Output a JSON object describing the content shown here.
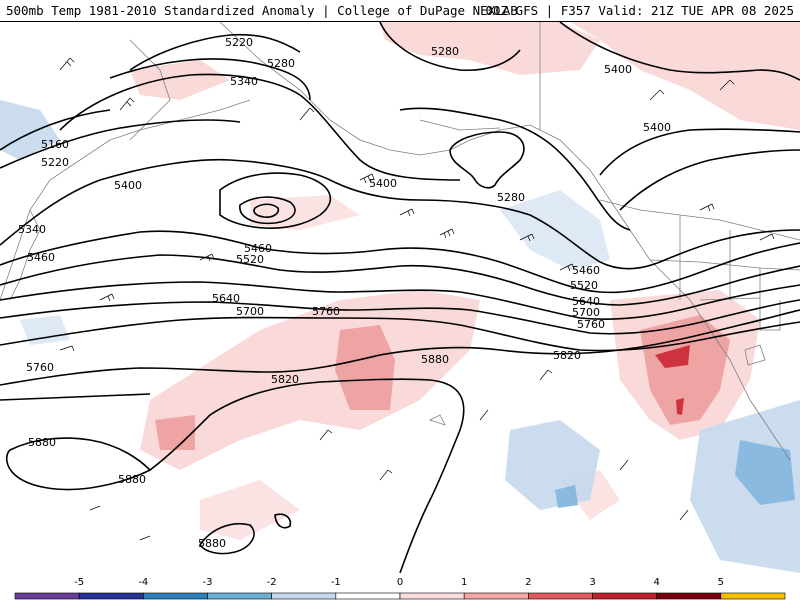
{
  "header": {
    "title_left": "500mb Temp 1981-2010 Standardized Anomaly | College of DuPage NEXLAB",
    "title_right": "00Z GFS | F357 Valid: 21Z TUE APR 08 2025"
  },
  "contour_labels": [
    "5220",
    "5280",
    "5340",
    "5160",
    "5220",
    "5400",
    "5340",
    "5460",
    "5400",
    "5280",
    "5280",
    "5400",
    "5400",
    "5460",
    "5520",
    "5640",
    "5700",
    "5760",
    "5760",
    "5460",
    "5520",
    "5640",
    "5700",
    "5760",
    "5820",
    "5820",
    "5880",
    "5880",
    "5880",
    "5880"
  ],
  "colorbar": {
    "ticks": [
      "-5",
      "-4",
      "-3",
      "-2",
      "-1",
      "0",
      "1",
      "2",
      "3",
      "4",
      "5"
    ],
    "colors": [
      "#6a3d9a",
      "#253494",
      "#2c7fb8",
      "#6baed6",
      "#c6dbef",
      "#ffffff",
      "#fcdcdc",
      "#f4a5a5",
      "#e05c5c",
      "#c0202a",
      "#7a0010",
      "#f5c000"
    ]
  },
  "colors": {
    "land_outline": "#808080",
    "contour": "#000000",
    "warm_light": "#f9d5d5",
    "warm_mid": "#ee9b9b",
    "warm_strong": "#c81e2a",
    "cold_light": "#c6d9ee",
    "cold_mid": "#7fb3de"
  }
}
